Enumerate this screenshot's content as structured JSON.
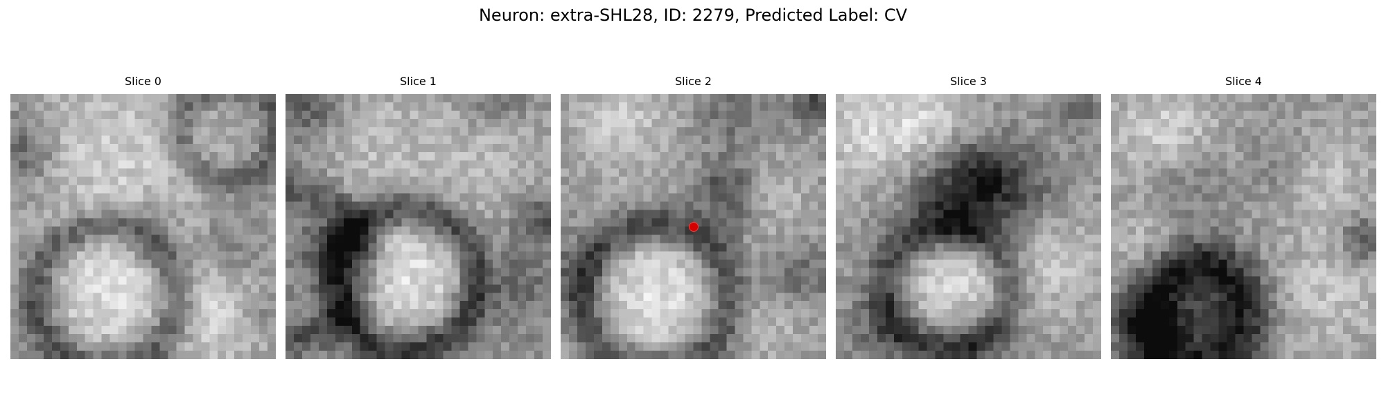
{
  "suptitle": "Neuron: extra-SHL28, ID: 2279, Predicted Label: CV",
  "slices": [
    {
      "title": "Slice 0",
      "kind": "grayscale-em-crop"
    },
    {
      "title": "Slice 1",
      "kind": "grayscale-em-crop"
    },
    {
      "title": "Slice 2",
      "kind": "grayscale-em-crop",
      "marker_color": "#d40000"
    },
    {
      "title": "Slice 3",
      "kind": "grayscale-em-crop"
    },
    {
      "title": "Slice 4",
      "kind": "grayscale-em-crop"
    }
  ]
}
